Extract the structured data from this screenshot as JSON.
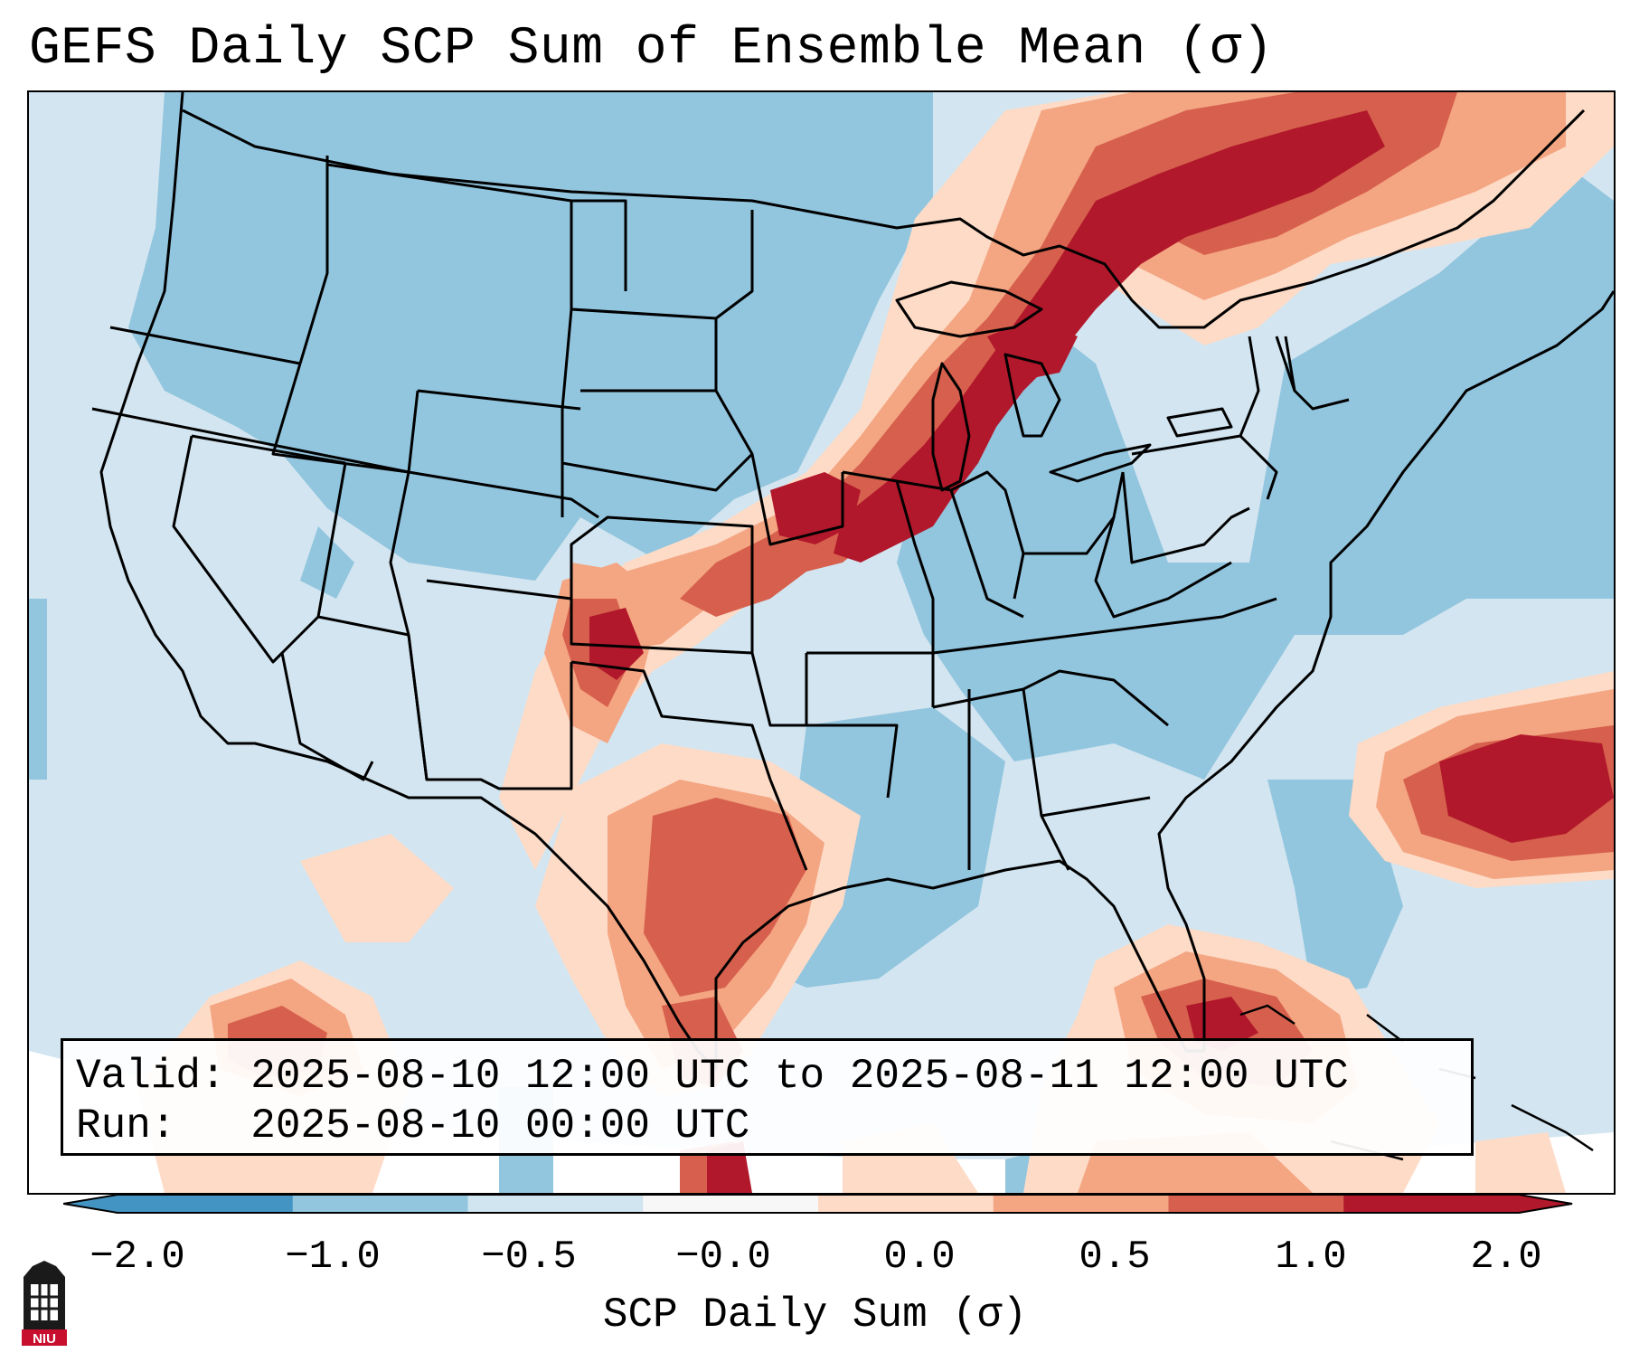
{
  "title": "GEFS Daily SCP Sum of Ensemble Mean (σ)",
  "info": {
    "valid_label": "Valid:",
    "valid_value": "2025-08-10 12:00 UTC to 2025-08-11 12:00 UTC",
    "run_label": "Run:",
    "run_value": "2025-08-10 00:00 UTC"
  },
  "colorbar": {
    "label": "SCP Daily Sum (σ)",
    "ticks": [
      "−2.0",
      "−1.0",
      "−0.5",
      "−0.0",
      "0.0",
      "0.5",
      "1.0",
      "2.0"
    ],
    "colors": [
      "#4393c3",
      "#92c5de",
      "#d1e5f0",
      "#f7f7f7",
      "#fddbc7",
      "#f4a582",
      "#d6604d",
      "#b2182b"
    ]
  },
  "map": {
    "region": "Continental United States",
    "field": "SCP Daily Sum anomaly (σ)"
  },
  "logo": {
    "text": "NIU"
  }
}
